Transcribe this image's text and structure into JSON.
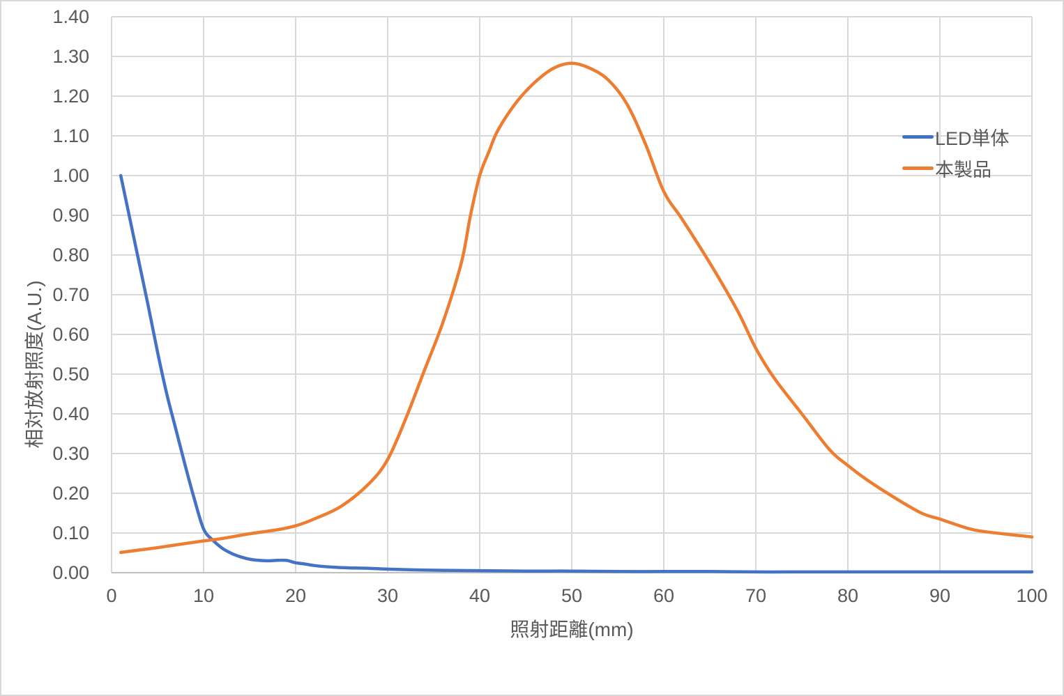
{
  "chart_data": {
    "type": "line",
    "title": "",
    "xlabel": "照射距離(mm)",
    "ylabel": "相対放射照度(A.U.)",
    "xlim": [
      0,
      100
    ],
    "ylim": [
      0,
      1.4
    ],
    "grid": true,
    "legend_position": "inside-right",
    "xticks": {
      "values": [
        0,
        10,
        20,
        30,
        40,
        50,
        60,
        70,
        80,
        90,
        100
      ],
      "labels": [
        "0",
        "10",
        "20",
        "30",
        "40",
        "50",
        "60",
        "70",
        "80",
        "90",
        "100"
      ]
    },
    "yticks": {
      "values": [
        0,
        0.1,
        0.2,
        0.3,
        0.4,
        0.5,
        0.6,
        0.7,
        0.8,
        0.9,
        1.0,
        1.1,
        1.2,
        1.3,
        1.4
      ],
      "labels": [
        "0.00",
        "0.10",
        "0.20",
        "0.30",
        "0.40",
        "0.50",
        "0.60",
        "0.70",
        "0.80",
        "0.90",
        "1.00",
        "1.10",
        "1.20",
        "1.30",
        "1.40"
      ]
    },
    "series": [
      {
        "name": "LED単体",
        "color": "#4472C4",
        "x": [
          1,
          2,
          3,
          4,
          5,
          6,
          7,
          8,
          9,
          10,
          11,
          12,
          13,
          14,
          15,
          16,
          17,
          18,
          19,
          20,
          21,
          22,
          24,
          26,
          28,
          30,
          33,
          36,
          40,
          45,
          50,
          55,
          60,
          65,
          70,
          75,
          80,
          85,
          90,
          95,
          100
        ],
        "y": [
          1.0,
          0.89,
          0.78,
          0.67,
          0.555,
          0.45,
          0.36,
          0.27,
          0.185,
          0.11,
          0.082,
          0.062,
          0.049,
          0.04,
          0.034,
          0.031,
          0.03,
          0.031,
          0.031,
          0.025,
          0.022,
          0.018,
          0.014,
          0.012,
          0.011,
          0.009,
          0.007,
          0.006,
          0.005,
          0.004,
          0.004,
          0.003,
          0.003,
          0.003,
          0.002,
          0.002,
          0.002,
          0.002,
          0.002,
          0.002,
          0.002
        ]
      },
      {
        "name": "本製品",
        "color": "#ED7D31",
        "x": [
          1,
          3,
          5,
          7,
          10,
          12,
          15,
          18,
          20,
          22,
          25,
          28,
          30,
          32,
          34,
          36,
          38,
          39,
          40,
          41,
          42,
          44,
          46,
          48,
          50,
          52,
          54,
          56,
          58,
          60,
          62,
          65,
          68,
          70,
          72,
          75,
          78,
          80,
          82,
          85,
          88,
          90,
          93,
          95,
          100
        ],
        "y": [
          0.051,
          0.057,
          0.063,
          0.07,
          0.08,
          0.086,
          0.098,
          0.108,
          0.118,
          0.135,
          0.168,
          0.225,
          0.285,
          0.39,
          0.51,
          0.63,
          0.78,
          0.9,
          1.0,
          1.06,
          1.115,
          1.185,
          1.235,
          1.27,
          1.283,
          1.27,
          1.24,
          1.18,
          1.08,
          0.96,
          0.89,
          0.78,
          0.66,
          0.565,
          0.49,
          0.4,
          0.31,
          0.27,
          0.235,
          0.19,
          0.15,
          0.135,
          0.112,
          0.103,
          0.09
        ]
      }
    ]
  },
  "colors": {
    "background": "#FFFFFF",
    "border": "#D9D9D9",
    "gridline": "#D9D9D9",
    "axis_line": "#BFBFBF",
    "text": "#595959",
    "series_led": "#4472C4",
    "series_product": "#ED7D31"
  }
}
